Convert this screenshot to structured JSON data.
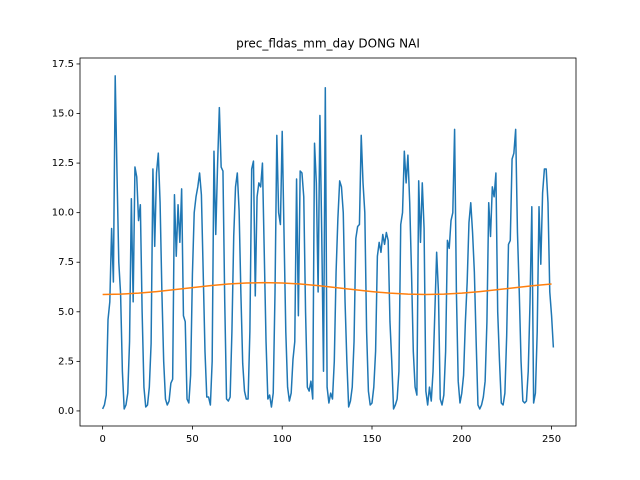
{
  "chart_data": {
    "type": "line",
    "title": "prec_fldas_mm_day DONG NAI",
    "xlim": [
      -12.6,
      263.6
    ],
    "ylim": [
      -0.76,
      17.8
    ],
    "xticks": [
      0,
      50,
      100,
      150,
      200,
      250
    ],
    "yticks": [
      {
        "value": 0,
        "label": "0.0"
      },
      {
        "value": 2.5,
        "label": "2.5"
      },
      {
        "value": 5,
        "label": "5.0"
      },
      {
        "value": 7.5,
        "label": "7.5"
      },
      {
        "value": 10,
        "label": "10.0"
      },
      {
        "value": 12.5,
        "label": "12.5"
      },
      {
        "value": 15,
        "label": "15.0"
      },
      {
        "value": 17.5,
        "label": "17.5"
      }
    ],
    "series": [
      {
        "color": "#1f77b4",
        "x": [
          0,
          1,
          2,
          3,
          4,
          5,
          6,
          7,
          8,
          9,
          10,
          11,
          12,
          13,
          14,
          15,
          16,
          17,
          18,
          19,
          20,
          21,
          22,
          23,
          24,
          25,
          26,
          27,
          28,
          29,
          30,
          31,
          32,
          33,
          34,
          35,
          36,
          37,
          38,
          39,
          40,
          41,
          42,
          43,
          44,
          45,
          46,
          47,
          48,
          49,
          50,
          51,
          52,
          53,
          54,
          55,
          56,
          57,
          58,
          59,
          60,
          61,
          62,
          63,
          64,
          65,
          66,
          67,
          68,
          69,
          70,
          71,
          72,
          73,
          74,
          75,
          76,
          77,
          78,
          79,
          80,
          81,
          82,
          83,
          84,
          85,
          86,
          87,
          88,
          89,
          90,
          91,
          92,
          93,
          94,
          95,
          96,
          97,
          98,
          99,
          100,
          101,
          102,
          103,
          104,
          105,
          106,
          107,
          108,
          109,
          110,
          111,
          112,
          113,
          114,
          115,
          116,
          117,
          118,
          119,
          120,
          121,
          122,
          123,
          124,
          125,
          126,
          127,
          128,
          129,
          130,
          131,
          132,
          133,
          134,
          135,
          136,
          137,
          138,
          139,
          140,
          141,
          142,
          143,
          144,
          145,
          146,
          147,
          148,
          149,
          150,
          151,
          152,
          153,
          154,
          155,
          156,
          157,
          158,
          159,
          160,
          161,
          162,
          163,
          164,
          165,
          166,
          167,
          168,
          169,
          170,
          171,
          172,
          173,
          174,
          175,
          176,
          177,
          178,
          179,
          180,
          181,
          182,
          183,
          184,
          185,
          186,
          187,
          188,
          189,
          190,
          191,
          192,
          193,
          194,
          195,
          196,
          197,
          198,
          199,
          200,
          201,
          202,
          203,
          204,
          205,
          206,
          207,
          208,
          209,
          210,
          211,
          212,
          213,
          214,
          215,
          216,
          217,
          218,
          219,
          220,
          221,
          222,
          223,
          224,
          225,
          226,
          227,
          228,
          229,
          230,
          231,
          232,
          233,
          234,
          235,
          236,
          237,
          238,
          239,
          240,
          241,
          242,
          243,
          244,
          245,
          246,
          247,
          248,
          249,
          250,
          251
        ],
        "values": [
          0.1,
          0.3,
          0.8,
          4.6,
          5.5,
          9.2,
          6.5,
          16.9,
          12.0,
          7.5,
          5.9,
          2.0,
          0.1,
          0.3,
          0.9,
          3.5,
          10.7,
          5.5,
          12.3,
          11.8,
          9.6,
          10.4,
          5.0,
          1.2,
          0.2,
          0.3,
          1.2,
          3.4,
          12.2,
          8.3,
          12.0,
          13.0,
          10.5,
          6.0,
          2.5,
          0.6,
          0.3,
          0.5,
          1.4,
          1.6,
          10.9,
          7.8,
          10.4,
          8.5,
          11.2,
          4.8,
          4.5,
          0.6,
          0.4,
          1.8,
          6.9,
          10.0,
          10.8,
          11.3,
          12.0,
          10.9,
          7.0,
          3.0,
          0.7,
          0.7,
          0.3,
          2.5,
          13.1,
          8.9,
          12.4,
          15.3,
          12.3,
          12.1,
          5.5,
          0.6,
          0.5,
          0.7,
          4.0,
          8.8,
          11.3,
          12.0,
          10.1,
          5.9,
          2.4,
          1.0,
          0.6,
          0.6,
          4.0,
          12.2,
          12.6,
          5.8,
          10.8,
          11.5,
          11.3,
          12.5,
          8.0,
          3.5,
          0.6,
          0.8,
          0.2,
          0.9,
          6.0,
          13.9,
          10.0,
          9.4,
          14.1,
          9.0,
          4.0,
          1.2,
          0.5,
          0.9,
          2.6,
          3.5,
          11.7,
          4.8,
          12.1,
          12.0,
          10.8,
          5.0,
          1.2,
          1.0,
          1.5,
          0.6,
          13.5,
          11.5,
          6.0,
          14.9,
          9.0,
          2.0,
          16.3,
          1.2,
          0.4,
          0.9,
          0.6,
          2.5,
          7.0,
          9.7,
          11.6,
          11.3,
          10.0,
          5.5,
          2.5,
          0.2,
          0.5,
          1.2,
          3.5,
          8.7,
          9.3,
          9.4,
          13.9,
          11.5,
          10.0,
          4.0,
          1.0,
          0.3,
          0.4,
          1.2,
          3.0,
          7.8,
          8.5,
          8.0,
          8.9,
          8.4,
          9.0,
          8.6,
          4.5,
          2.5,
          0.1,
          0.3,
          0.6,
          2.0,
          9.4,
          10.0,
          13.1,
          11.5,
          12.9,
          10.5,
          7.0,
          3.0,
          1.2,
          0.8,
          11.6,
          8.5,
          11.5,
          9.2,
          1.0,
          0.3,
          1.2,
          0.5,
          2.0,
          5.0,
          8.0,
          6.0,
          0.6,
          0.3,
          0.8,
          3.0,
          8.6,
          8.2,
          9.6,
          10.0,
          14.2,
          6.0,
          1.5,
          0.4,
          0.9,
          1.8,
          4.5,
          6.5,
          9.5,
          10.5,
          9.0,
          7.0,
          3.5,
          0.3,
          0.1,
          0.3,
          0.7,
          1.5,
          4.5,
          10.5,
          8.8,
          11.3,
          10.8,
          12.0,
          5.0,
          2.5,
          0.4,
          0.3,
          0.9,
          3.8,
          8.4,
          8.6,
          12.7,
          13.0,
          14.2,
          9.0,
          6.0,
          2.5,
          0.5,
          0.4,
          0.5,
          2.0,
          5.5,
          10.3,
          0.4,
          0.9,
          4.0,
          10.3,
          7.4,
          11.0,
          12.2,
          12.2,
          10.5,
          6.0,
          4.8,
          3.2
        ]
      },
      {
        "color": "#ff7f0e",
        "x": [
          0,
          10,
          20,
          30,
          40,
          50,
          60,
          70,
          80,
          90,
          100,
          110,
          120,
          130,
          140,
          150,
          160,
          170,
          180,
          190,
          200,
          210,
          220,
          230,
          240,
          250
        ],
        "values": [
          5.87,
          5.89,
          5.94,
          6.02,
          6.12,
          6.22,
          6.32,
          6.4,
          6.45,
          6.47,
          6.45,
          6.4,
          6.32,
          6.22,
          6.12,
          6.02,
          5.94,
          5.89,
          5.87,
          5.89,
          5.94,
          6.02,
          6.12,
          6.22,
          6.32,
          6.4
        ]
      }
    ]
  }
}
